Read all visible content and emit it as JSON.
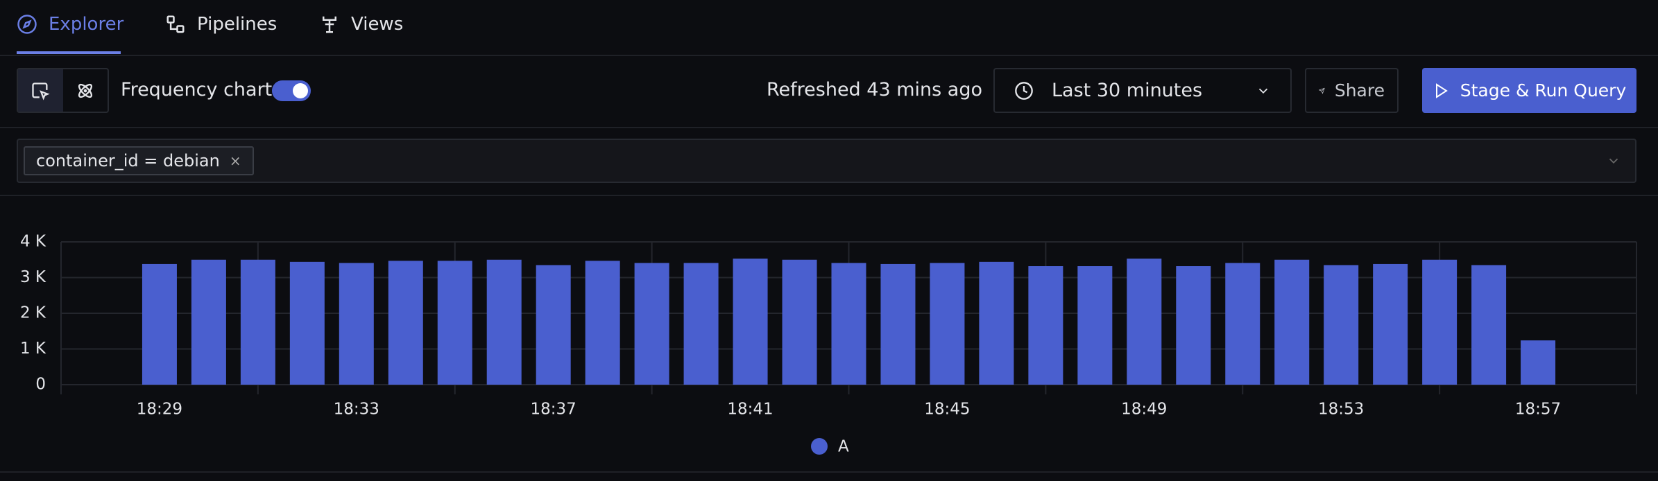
{
  "nav": {
    "tabs": [
      "Explorer",
      "Pipelines",
      "Views"
    ]
  },
  "toolbar": {
    "frequency_chart": "Frequency chart",
    "refreshed": "Refreshed 43 mins ago",
    "time_range": "Last 30 minutes",
    "share": "Share",
    "run": "Stage & Run Query"
  },
  "filter": {
    "chips": [
      "container_id = debian"
    ]
  },
  "chart_data": {
    "type": "bar",
    "categories": [
      "18:29",
      null,
      null,
      null,
      "18:33",
      null,
      null,
      null,
      "18:37",
      null,
      null,
      null,
      "18:41",
      null,
      null,
      null,
      "18:45",
      null,
      null,
      null,
      "18:49",
      null,
      null,
      null,
      "18:53",
      null,
      null,
      null,
      "18:57"
    ],
    "series": [
      {
        "name": "A",
        "color": "#4a5fcf",
        "values": [
          3380,
          3500,
          3500,
          3440,
          3410,
          3470,
          3470,
          3500,
          3350,
          3470,
          3410,
          3410,
          3530,
          3500,
          3410,
          3380,
          3410,
          3440,
          3320,
          3320,
          3530,
          3320,
          3410,
          3500,
          3350,
          3380,
          3500,
          3350,
          1240
        ]
      }
    ],
    "ylim": [
      0,
      4000
    ],
    "yticks": [
      0,
      {
        "value": 1000,
        "label": "1 K"
      },
      {
        "value": 2000,
        "label": "2 K"
      },
      {
        "value": 3000,
        "label": "3 K"
      },
      {
        "value": 4000,
        "label": "4 K"
      }
    ],
    "grid": true,
    "legend": "bottom"
  }
}
